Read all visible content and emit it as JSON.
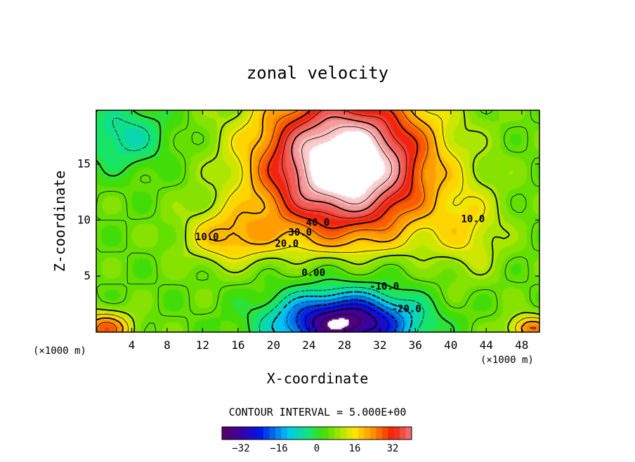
{
  "chart_data": {
    "type": "heatmap",
    "subtype": "filled-contour",
    "title": "zonal velocity",
    "xlabel": "X-coordinate",
    "ylabel": "Z-coordinate",
    "x_unit": "(×1000 m)",
    "y_unit": "(×1000 m)",
    "xlim": [
      0,
      50
    ],
    "ylim": [
      0,
      19.8
    ],
    "xticks": [
      4,
      8,
      12,
      16,
      20,
      24,
      28,
      32,
      36,
      40,
      44,
      48
    ],
    "yticks": [
      5,
      10,
      15
    ],
    "contour_interval_text": "CONTOUR INTERVAL = 5.000E+00",
    "contour_interval": 5,
    "colorbar": {
      "min": -40,
      "max": 40,
      "ticks": [
        -32,
        -16,
        0,
        16,
        32
      ],
      "colormap": "rainbow (purple-blue-cyan-green-yellow-red-pink)"
    },
    "contour_labels": [
      {
        "text": "40.0",
        "x": 25.0,
        "z": 9.5
      },
      {
        "text": "30.0",
        "x": 23.0,
        "z": 8.6
      },
      {
        "text": "20.0",
        "x": 21.5,
        "z": 7.6
      },
      {
        "text": "10.0",
        "x": 12.5,
        "z": 8.2
      },
      {
        "text": "10.0",
        "x": 42.5,
        "z": 9.8
      },
      {
        "text": "0.00",
        "x": 24.5,
        "z": 5.0
      },
      {
        "text": "-10.0",
        "x": 32.5,
        "z": 3.8
      },
      {
        "text": "-20.0",
        "x": 35.0,
        "z": 1.8
      }
    ],
    "features": {
      "jet_core": {
        "x": 28,
        "z": 15,
        "peak": 50
      },
      "negative_core": {
        "x": 28,
        "z": 0.8,
        "min": -36
      }
    }
  }
}
